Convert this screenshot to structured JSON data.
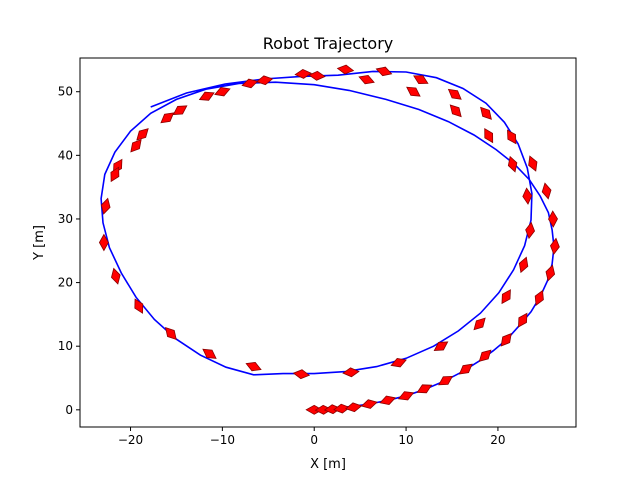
{
  "chart_data": {
    "type": "line",
    "title": "Robot Trajectory",
    "xlabel": "X [m]",
    "ylabel": "Y [m]",
    "xlim": [
      -25.5,
      28.5
    ],
    "ylim": [
      -2.7,
      55.3
    ],
    "xticks": [
      -20,
      -10,
      0,
      10,
      20
    ],
    "yticks": [
      0,
      10,
      20,
      30,
      40,
      50
    ],
    "grid": false,
    "legend": "none",
    "line_color": "#0000ff",
    "marker_color": "#ff0000",
    "marker_edge_color": "#8b0000",
    "series": [
      {
        "x": [
          0,
          2,
          4,
          6,
          8,
          10,
          12,
          14,
          16,
          18,
          19.5,
          21,
          22.3,
          23.6,
          24.6,
          25.4,
          25.9,
          26.1,
          25.9,
          25.5,
          24.6,
          23.4,
          21.8,
          19.8,
          17.4,
          14.6,
          11.4,
          7.8,
          3.8,
          0,
          -4.2,
          -8.2,
          -11.8,
          -15,
          -17.8,
          -20,
          -21.7,
          -22.8,
          -23.2,
          -23,
          -22.3,
          -21,
          -19.4,
          -17.4,
          -15,
          -12.4,
          -9.6,
          -6.6,
          -3.4,
          0,
          3.4,
          6.8,
          10,
          13,
          15.7,
          18.1,
          20.1,
          21.7,
          22.9,
          23.6,
          23.7,
          23.2,
          22.2,
          20.7,
          18.7,
          16.2,
          13.3,
          10,
          6.4,
          2.6,
          -1.4,
          -5.5,
          -9.7,
          -13.9,
          -17.8
        ],
        "y": [
          0,
          0.2,
          0.5,
          0.9,
          1.5,
          2.2,
          3.2,
          4.4,
          5.9,
          7.7,
          9.3,
          11.1,
          13.2,
          15.4,
          17.8,
          20.3,
          22.9,
          25.6,
          28.3,
          31,
          33.6,
          36.2,
          38.6,
          40.9,
          43.2,
          45.3,
          47.2,
          48.8,
          50.2,
          51.1,
          51.5,
          51.3,
          50.4,
          48.8,
          46.6,
          43.8,
          40.5,
          37,
          33.2,
          29.4,
          25.5,
          21.5,
          17.7,
          14.2,
          11.1,
          8.6,
          6.7,
          5.5,
          5.7,
          5.7,
          6,
          6.8,
          8.1,
          10,
          12.4,
          15.2,
          18.4,
          22,
          25.8,
          29.8,
          34,
          38,
          41.8,
          45.2,
          48.2,
          50.5,
          52.2,
          53.1,
          53.2,
          52.6,
          52.4,
          52,
          51.2,
          49.8,
          47.6
        ],
        "markers": [
          {
            "x": 0,
            "y": 0,
            "angle": 0
          },
          {
            "x": 1,
            "y": 0,
            "angle": 3
          },
          {
            "x": 2,
            "y": 0.1,
            "angle": 6
          },
          {
            "x": 3,
            "y": 0.2,
            "angle": 8
          },
          {
            "x": 4.3,
            "y": 0.4,
            "angle": 10
          },
          {
            "x": 6,
            "y": 0.9,
            "angle": 14
          },
          {
            "x": 8,
            "y": 1.5,
            "angle": 18
          },
          {
            "x": 10,
            "y": 2.2,
            "angle": 22
          },
          {
            "x": 12,
            "y": 3.3,
            "angle": 27
          },
          {
            "x": 14.3,
            "y": 4.6,
            "angle": 32
          },
          {
            "x": 16.5,
            "y": 6.4,
            "angle": 38
          },
          {
            "x": 18.6,
            "y": 8.5,
            "angle": 44
          },
          {
            "x": 20.9,
            "y": 11,
            "angle": 51
          },
          {
            "x": 22.7,
            "y": 14.1,
            "angle": 58
          },
          {
            "x": 24.5,
            "y": 17.6,
            "angle": 66
          },
          {
            "x": 25.7,
            "y": 21.5,
            "angle": 74
          },
          {
            "x": 26.2,
            "y": 25.7,
            "angle": 82
          },
          {
            "x": 26,
            "y": 30,
            "angle": 92
          },
          {
            "x": 25.3,
            "y": 34.4,
            "angle": 102
          },
          {
            "x": 23.8,
            "y": 38.7,
            "angle": 112
          },
          {
            "x": 21.5,
            "y": 42.9,
            "angle": 122
          },
          {
            "x": 18.7,
            "y": 46.6,
            "angle": 132
          },
          {
            "x": 15.3,
            "y": 49.6,
            "angle": 142
          },
          {
            "x": 11.6,
            "y": 51.9,
            "angle": 152
          },
          {
            "x": 7.6,
            "y": 53.2,
            "angle": 162
          },
          {
            "x": 3.4,
            "y": 53.5,
            "angle": 172
          },
          {
            "x": -1.2,
            "y": 52.8,
            "angle": 185
          },
          {
            "x": -5.4,
            "y": 51.8,
            "angle": 190
          },
          {
            "x": -7,
            "y": 51.3,
            "angle": 195
          },
          {
            "x": -10,
            "y": 50,
            "angle": 200
          },
          {
            "x": -11.7,
            "y": 49.3,
            "angle": 205
          },
          {
            "x": -14.6,
            "y": 47.1,
            "angle": 213
          },
          {
            "x": -16,
            "y": 45.9,
            "angle": 218
          },
          {
            "x": -18.7,
            "y": 43.3,
            "angle": 225
          },
          {
            "x": -19.4,
            "y": 41.5,
            "angle": 230
          },
          {
            "x": -21.4,
            "y": 38.3,
            "angle": 238
          },
          {
            "x": -21.7,
            "y": 37,
            "angle": 242
          },
          {
            "x": -22.7,
            "y": 32,
            "angle": 255
          },
          {
            "x": -22.9,
            "y": 26.3,
            "angle": 270
          },
          {
            "x": -21.6,
            "y": 21,
            "angle": 285
          },
          {
            "x": -19.1,
            "y": 16.3,
            "angle": 298
          },
          {
            "x": -15.6,
            "y": 12,
            "angle": 312
          },
          {
            "x": -11.4,
            "y": 8.8,
            "angle": 325
          },
          {
            "x": -6.6,
            "y": 6.8,
            "angle": 338
          },
          {
            "x": -1.4,
            "y": 5.6,
            "angle": 352
          },
          {
            "x": 4,
            "y": 5.9,
            "angle": 6
          },
          {
            "x": 9.2,
            "y": 7.4,
            "angle": 20
          },
          {
            "x": 13.8,
            "y": 10,
            "angle": 33
          },
          {
            "x": 18,
            "y": 13.5,
            "angle": 46
          },
          {
            "x": 20.9,
            "y": 17.8,
            "angle": 58
          },
          {
            "x": 22.8,
            "y": 22.8,
            "angle": 70
          },
          {
            "x": 23.5,
            "y": 28.2,
            "angle": 82
          },
          {
            "x": 23.2,
            "y": 33.6,
            "angle": 95
          },
          {
            "x": 21.6,
            "y": 38.6,
            "angle": 108
          },
          {
            "x": 19,
            "y": 43.1,
            "angle": 120
          },
          {
            "x": 15.4,
            "y": 47,
            "angle": 133
          },
          {
            "x": 10.8,
            "y": 50,
            "angle": 146
          },
          {
            "x": 5.7,
            "y": 51.9,
            "angle": 160
          },
          {
            "x": 0.3,
            "y": 52.5,
            "angle": 175
          }
        ]
      }
    ]
  }
}
